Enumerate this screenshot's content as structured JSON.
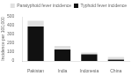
{
  "chart_data": {
    "type": "bar",
    "stacked": true,
    "categories": [
      "Pakistan",
      "India",
      "Indonesia",
      "China"
    ],
    "series": [
      {
        "name": "Typhoid fever incidence",
        "color": "#111111",
        "values": [
          390,
          130,
          75,
          15
        ]
      },
      {
        "name": "Paratyphoid fever incidence",
        "color": "#e0e0e0",
        "values": [
          65,
          40,
          20,
          30
        ]
      }
    ],
    "ylabel": "Incidence per 100,000",
    "ylim": [
      0,
      500
    ],
    "yticks": [
      0,
      100,
      200,
      300,
      400,
      500
    ],
    "legend": "upper right",
    "grid": false
  }
}
